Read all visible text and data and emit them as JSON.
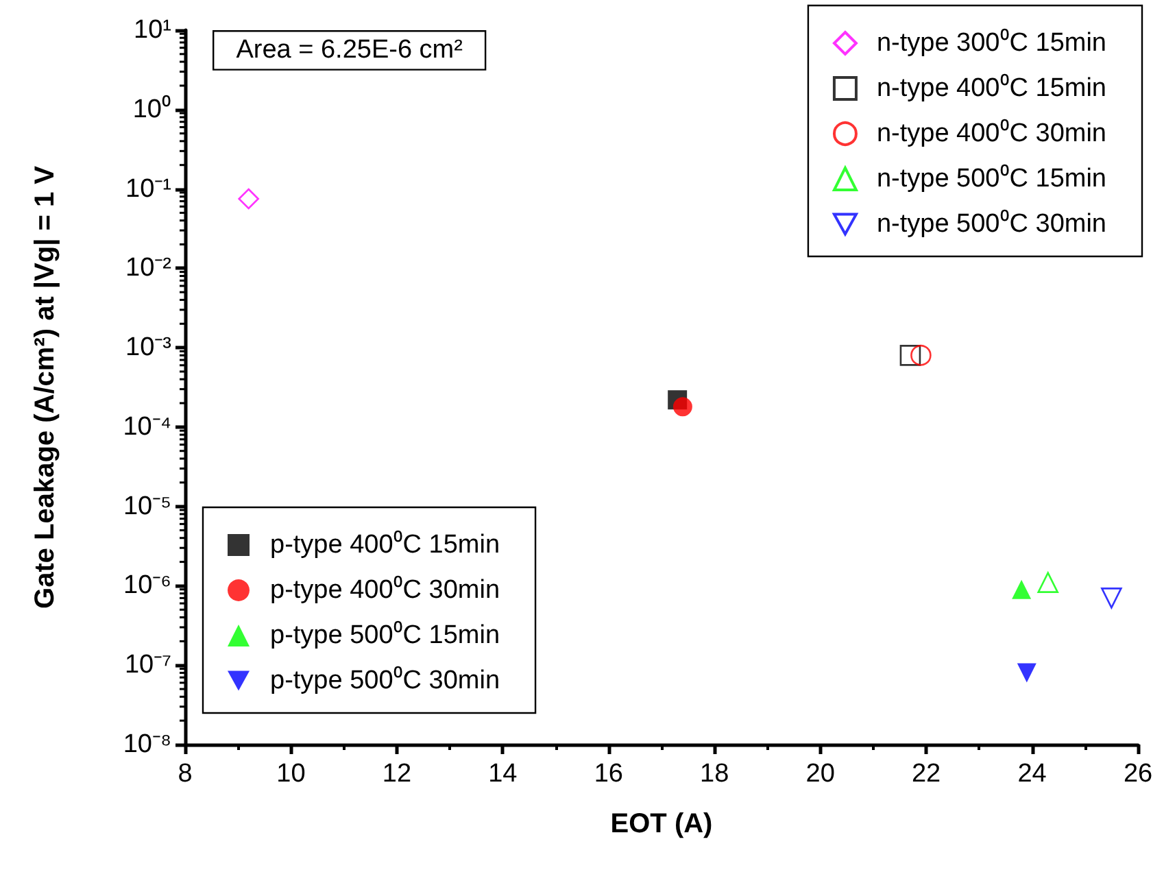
{
  "chart_data": {
    "type": "scatter",
    "xlabel": "EOT (A)",
    "ylabel": "Gate Leakage (A/cm²) at |Vg| = 1 V",
    "annotations": [
      "Area = 6.25E-6 cm²"
    ],
    "log": "y",
    "xlim": [
      8,
      26
    ],
    "xticks": [
      8,
      10,
      12,
      14,
      16,
      18,
      20,
      22,
      24,
      26
    ],
    "ylim": [
      1e-08,
      10
    ],
    "yticks": [
      {
        "value": 1e-08,
        "label": "10⁻⁸"
      },
      {
        "value": 1e-07,
        "label": "10⁻⁷"
      },
      {
        "value": 1e-06,
        "label": "10⁻⁶"
      },
      {
        "value": 1e-05,
        "label": "10⁻⁵"
      },
      {
        "value": 0.0001,
        "label": "10⁻⁴"
      },
      {
        "value": 0.001,
        "label": "10⁻³"
      },
      {
        "value": 0.01,
        "label": "10⁻²"
      },
      {
        "value": 0.1,
        "label": "10⁻¹"
      },
      {
        "value": 1,
        "label": "10⁰"
      },
      {
        "value": 10,
        "label": "10¹"
      }
    ],
    "grid": false,
    "legend": [
      "top right",
      "bottom left"
    ],
    "series": [
      {
        "name": "n-type 300⁰C 15min",
        "color": "#ff00ff",
        "marker": "diamond",
        "x": [
          9.2
        ],
        "values": [
          0.075
        ]
      },
      {
        "name": "n-type 400⁰C 15min",
        "color": "#000000",
        "marker": "square",
        "x": [
          21.7
        ],
        "values": [
          0.0008
        ]
      },
      {
        "name": "n-type 400⁰C 30min",
        "color": "#ff0000",
        "marker": "circle",
        "x": [
          21.9
        ],
        "values": [
          0.0008
        ]
      },
      {
        "name": "n-type 500⁰C 15min",
        "color": "#00ff00",
        "marker": "triangle",
        "x": [
          24.3
        ],
        "values": [
          1.1e-06
        ]
      },
      {
        "name": "n-type 500⁰C 30min",
        "color": "#0000ff",
        "marker": "triangle-down",
        "x": [
          25.5
        ],
        "values": [
          7e-07
        ]
      },
      {
        "name": "p-type 400⁰C 15min",
        "color": "#000000",
        "marker": "square",
        "x": [
          17.3
        ],
        "values": [
          0.00022
        ]
      },
      {
        "name": "p-type 400⁰C 30min",
        "color": "#ff0000",
        "marker": "circle",
        "x": [
          17.4
        ],
        "values": [
          0.00018
        ]
      },
      {
        "name": "p-type 500⁰C 15min",
        "color": "#00ff00",
        "marker": "triangle",
        "x": [
          23.8
        ],
        "values": [
          9e-07
        ]
      },
      {
        "name": "p-type 500⁰C 30min",
        "color": "#0000ff",
        "marker": "triangle-down",
        "x": [
          23.9
        ],
        "values": [
          8e-08
        ]
      }
    ]
  }
}
